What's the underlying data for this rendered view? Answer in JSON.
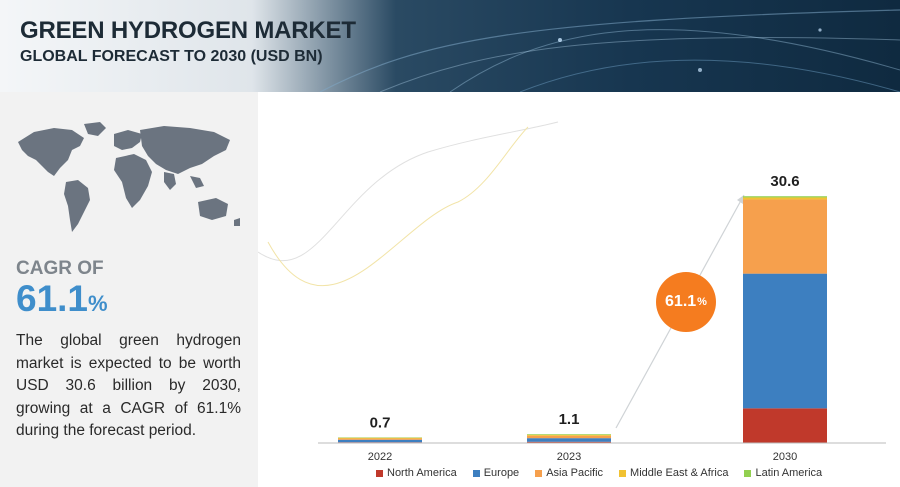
{
  "header": {
    "title": "GREEN HYDROGEN MARKET",
    "subtitle": "GLOBAL FORECAST TO 2030 (USD BN)"
  },
  "left_panel": {
    "cagr_label": "CAGR OF",
    "cagr_value": "61.1",
    "cagr_unit": "%",
    "description": "The global green hydrogen market is expected to be worth USD 30.6 billion by 2030, growing at a CAGR of 61.1% during the forecast period.",
    "map_icon": "world-map-icon"
  },
  "chart_data": {
    "type": "bar",
    "stacked": true,
    "title": "GLOBAL FORECAST TO 2030 (USD BN)",
    "categories": [
      "2022",
      "2023",
      "2030"
    ],
    "totals": [
      "0.7",
      "1.1",
      "30.6"
    ],
    "series": [
      {
        "name": "North America",
        "color": "#c0392b",
        "values": [
          0.1,
          0.15,
          4.3
        ]
      },
      {
        "name": "Europe",
        "color": "#3d7fc0",
        "values": [
          0.3,
          0.45,
          16.7
        ]
      },
      {
        "name": "Asia Pacific",
        "color": "#f6a04d",
        "values": [
          0.15,
          0.3,
          9.2
        ]
      },
      {
        "name": "Middle East & Africa",
        "color": "#f1c232",
        "values": [
          0.1,
          0.12,
          0.25
        ]
      },
      {
        "name": "Latin America",
        "color": "#92d050",
        "values": [
          0.05,
          0.08,
          0.15
        ]
      }
    ],
    "ylim": [
      0,
      31
    ],
    "grid": false,
    "legend_position": "bottom",
    "annotation": {
      "value": "61.1",
      "unit": "%",
      "color": "#f57c1f"
    }
  }
}
